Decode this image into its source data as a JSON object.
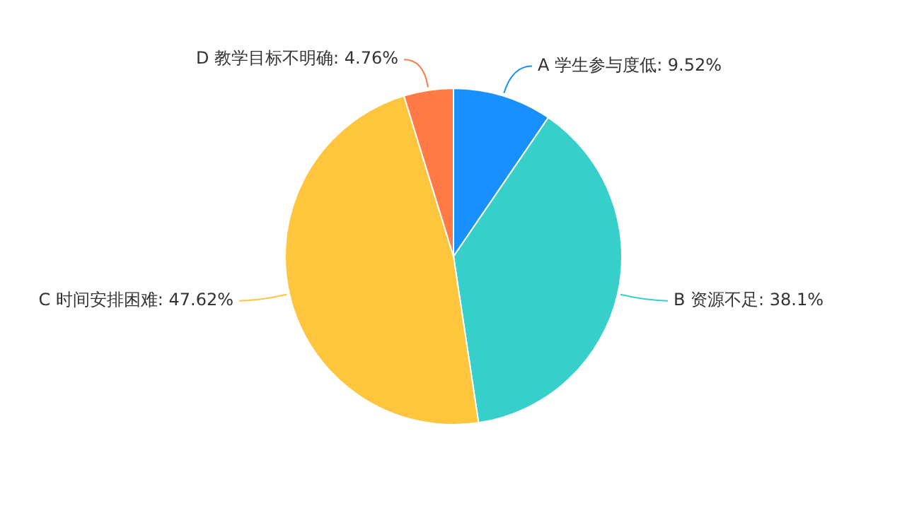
{
  "chart_data": {
    "type": "pie",
    "categories": [
      "A 学生参与度低",
      "B 资源不足",
      "C 时间安排困难",
      "D 教学目标不明确"
    ],
    "values": [
      9.52,
      38.1,
      47.62,
      4.76
    ],
    "value_labels": [
      ": 9.52%",
      ": 38.1%",
      ": 47.62%",
      ": 4.76%"
    ],
    "colors": [
      "#1890ff",
      "#36cfc9",
      "#ffc53d",
      "#ff7a45"
    ],
    "legend": false
  }
}
